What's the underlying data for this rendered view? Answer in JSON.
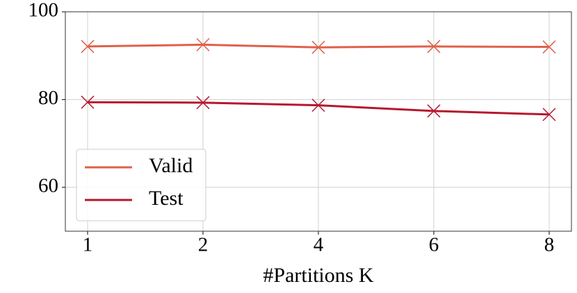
{
  "chart_data": {
    "type": "line",
    "x_label": "#Partitions K",
    "categories": [
      "1",
      "2",
      "4",
      "6",
      "8"
    ],
    "series": [
      {
        "name": "Valid",
        "color": "#e0604a",
        "values": [
          92.1,
          92.5,
          91.9,
          92.1,
          92.0
        ]
      },
      {
        "name": "Test",
        "color": "#b5182e",
        "values": [
          79.4,
          79.3,
          78.7,
          77.4,
          76.6
        ]
      }
    ],
    "marker": "x",
    "ylim": [
      50,
      100
    ],
    "yticks": [
      60,
      80,
      100
    ],
    "grid": true,
    "legend": "lower left"
  }
}
